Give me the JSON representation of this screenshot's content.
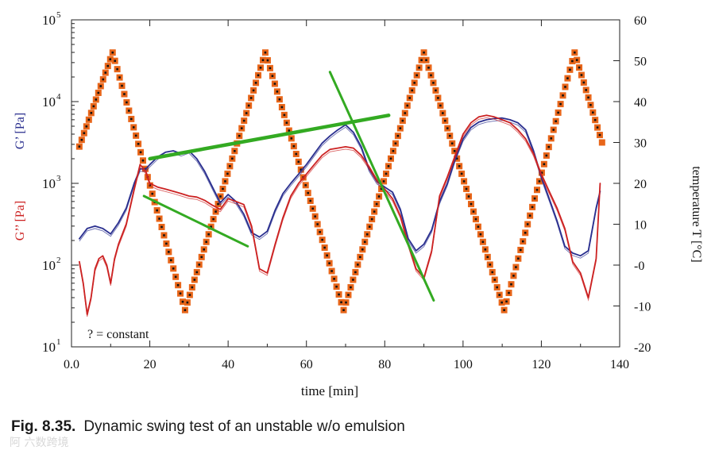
{
  "chart_data": {
    "type": "line",
    "xlabel": "time [min]",
    "x_ticks": [
      "0.0",
      "20",
      "40",
      "60",
      "80",
      "100",
      "120",
      "140"
    ],
    "xlim": [
      0,
      140
    ],
    "left_axis": {
      "scale": "log",
      "ylim": [
        10,
        100000
      ],
      "tick_labels": [
        {
          "base": "10",
          "exp": "5",
          "value": 100000
        },
        {
          "base": "10",
          "exp": "4",
          "value": 10000
        },
        {
          "base": "10",
          "exp": "3",
          "value": 1000
        },
        {
          "base": "10",
          "exp": "2",
          "value": 100
        },
        {
          "base": "10",
          "exp": "1",
          "value": 10
        }
      ],
      "label_g1": "G’ [Pa]",
      "label_g2": "G’’ [Pa]",
      "color_g1": "#2a2f8f",
      "color_g2": "#cc2222"
    },
    "right_axis": {
      "ylim": [
        -20,
        60
      ],
      "ticks": [
        "60",
        "50",
        "40",
        "30",
        "20",
        "10",
        "-0",
        "-10",
        "-20"
      ],
      "label": "temperature T [°C]"
    },
    "annotation": "? = constant",
    "series": [
      {
        "name": "temperature T",
        "axis": "right",
        "style": "orange-square-markers",
        "color": "#e8661a",
        "x": [
          2,
          10.5,
          29,
          49.5,
          69.5,
          90,
          110.5,
          128.5,
          135.5
        ],
        "y": [
          29,
          52,
          -11,
          52,
          -11,
          52,
          -11,
          52,
          30
        ]
      },
      {
        "name": "G’",
        "axis": "left",
        "color": "#2a2f8f",
        "x": [
          2,
          4,
          6,
          8,
          10,
          12,
          14,
          16,
          17.5,
          19,
          20,
          22,
          24,
          26,
          28,
          30,
          32,
          34,
          36,
          38,
          40,
          42,
          44,
          46,
          48,
          50,
          52,
          54,
          56,
          58,
          60,
          62,
          64,
          66,
          68,
          70,
          72,
          74,
          76,
          78,
          80,
          82,
          84,
          86,
          88,
          90,
          92,
          94,
          96,
          98,
          100,
          102,
          104,
          106,
          108,
          110,
          112,
          114,
          116,
          118,
          120,
          122,
          124,
          126,
          128,
          130,
          132,
          134,
          135
        ],
        "y": [
          210,
          280,
          300,
          280,
          240,
          330,
          500,
          1000,
          1500,
          1500,
          1700,
          2100,
          2400,
          2500,
          2300,
          2500,
          2000,
          1400,
          900,
          580,
          730,
          600,
          420,
          250,
          220,
          260,
          470,
          750,
          1000,
          1300,
          1700,
          2300,
          3100,
          3800,
          4500,
          5200,
          4200,
          2800,
          1500,
          1050,
          900,
          780,
          480,
          210,
          150,
          180,
          270,
          600,
          1000,
          2000,
          3500,
          4800,
          5600,
          6000,
          6200,
          6300,
          6000,
          5500,
          4500,
          2500,
          1200,
          650,
          350,
          170,
          140,
          130,
          150,
          500,
          800
        ]
      },
      {
        "name": "G’’",
        "axis": "left",
        "color": "#cc2222",
        "x": [
          2,
          3,
          4,
          5,
          6,
          7,
          8,
          9,
          10,
          11,
          12,
          14,
          16,
          17.5,
          19,
          20,
          22,
          24,
          26,
          28,
          30,
          32,
          34,
          36,
          38,
          40,
          42,
          44,
          46,
          48,
          50,
          52,
          54,
          56,
          58,
          60,
          62,
          64,
          66,
          68,
          70,
          72,
          74,
          76,
          78,
          80,
          82,
          84,
          86,
          88,
          90,
          92,
          94,
          96,
          98,
          100,
          102,
          104,
          106,
          108,
          110,
          112,
          114,
          116,
          118,
          120,
          122,
          124,
          126,
          128,
          130,
          132,
          134,
          135
        ],
        "y": [
          110,
          60,
          25,
          40,
          90,
          120,
          130,
          100,
          60,
          120,
          180,
          320,
          850,
          1700,
          1400,
          1000,
          900,
          850,
          800,
          750,
          700,
          680,
          620,
          540,
          480,
          650,
          600,
          550,
          300,
          90,
          80,
          180,
          380,
          700,
          1000,
          1300,
          1700,
          2200,
          2600,
          2700,
          2800,
          2700,
          2200,
          1600,
          1100,
          850,
          650,
          400,
          180,
          90,
          70,
          150,
          700,
          1200,
          2200,
          4000,
          5500,
          6500,
          6800,
          6500,
          6000,
          5500,
          4500,
          3500,
          2300,
          1300,
          800,
          500,
          280,
          110,
          80,
          40,
          120,
          1000
        ]
      },
      {
        "name": "trend 1",
        "axis": "left",
        "color": "#33aa22",
        "x": [
          20,
          81
        ],
        "y": [
          2000,
          6800
        ]
      },
      {
        "name": "trend 2",
        "axis": "left",
        "color": "#33aa22",
        "x": [
          18.5,
          45
        ],
        "y": [
          700,
          170
        ]
      },
      {
        "name": "trend 3",
        "axis": "left",
        "color": "#33aa22",
        "x": [
          66,
          92.5
        ],
        "y": [
          23000,
          37
        ]
      }
    ]
  },
  "caption": {
    "fig_label": "Fig. 8.35.",
    "text": "Dynamic swing test of an unstable w/o emulsion"
  },
  "watermark": "阿 六数跨境"
}
